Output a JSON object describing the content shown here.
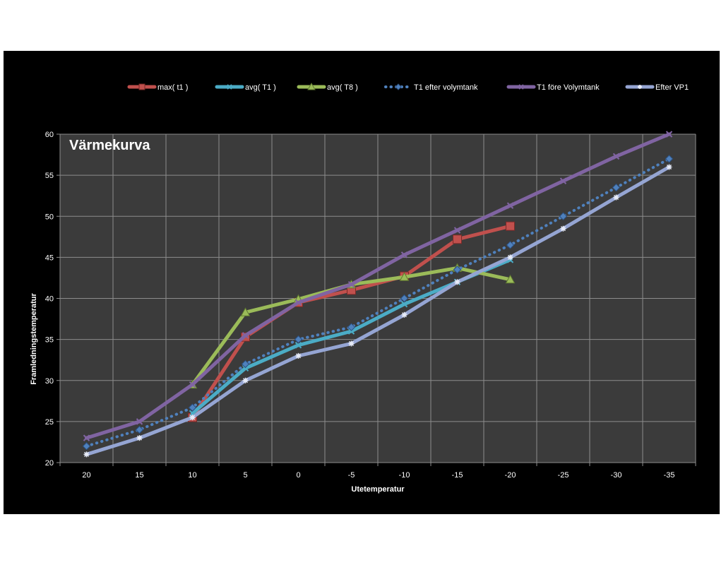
{
  "chart_data": {
    "type": "line",
    "title": "Värmekurva",
    "xlabel": "Utetemperatur",
    "ylabel": "Framledningstemperatur",
    "categories": [
      "20",
      "15",
      "10",
      "5",
      "0",
      "-5",
      "-10",
      "-15",
      "-20",
      "-25",
      "-30",
      "-35"
    ],
    "ylim": [
      20,
      60
    ],
    "yticks": [
      20,
      25,
      30,
      35,
      40,
      45,
      50,
      55,
      60
    ],
    "grid": true,
    "legend": "top",
    "series": [
      {
        "name": "max( t1 )",
        "color": "#c0504d",
        "marker": "square",
        "dash": false,
        "values": [
          null,
          null,
          25.5,
          35.3,
          39.5,
          41.0,
          42.7,
          47.2,
          48.8,
          null,
          null,
          null
        ]
      },
      {
        "name": "avg( T1 )",
        "color": "#4bacc6",
        "marker": "x",
        "dash": false,
        "values": [
          null,
          null,
          26.0,
          31.5,
          34.3,
          36.0,
          39.3,
          42.0,
          44.7,
          null,
          null,
          null
        ]
      },
      {
        "name": "avg( T8 )",
        "color": "#9bbb59",
        "marker": "triangle",
        "dash": false,
        "values": [
          null,
          null,
          29.5,
          38.3,
          39.9,
          41.7,
          42.6,
          43.7,
          42.3,
          null,
          null,
          null
        ]
      },
      {
        "name": "T1 efter volymtank",
        "color": "#4f81bd",
        "marker": "diamond",
        "dash": true,
        "values": [
          22.0,
          24.0,
          26.7,
          32.0,
          35.0,
          36.5,
          40.0,
          43.5,
          46.5,
          50.0,
          53.5,
          57.0
        ]
      },
      {
        "name": "T1 före Volymtank",
        "color": "#8064a2",
        "marker": "x",
        "dash": false,
        "values": [
          23.0,
          25.0,
          29.5,
          35.5,
          39.5,
          41.7,
          45.3,
          48.3,
          51.3,
          54.3,
          57.3,
          60.0
        ]
      },
      {
        "name": "Efter VP1",
        "color": "#95a5d3",
        "marker": "star",
        "dash": false,
        "values": [
          21.0,
          23.0,
          25.5,
          30.0,
          33.0,
          34.5,
          38.0,
          42.0,
          45.0,
          48.5,
          52.3,
          56.0
        ]
      }
    ]
  }
}
